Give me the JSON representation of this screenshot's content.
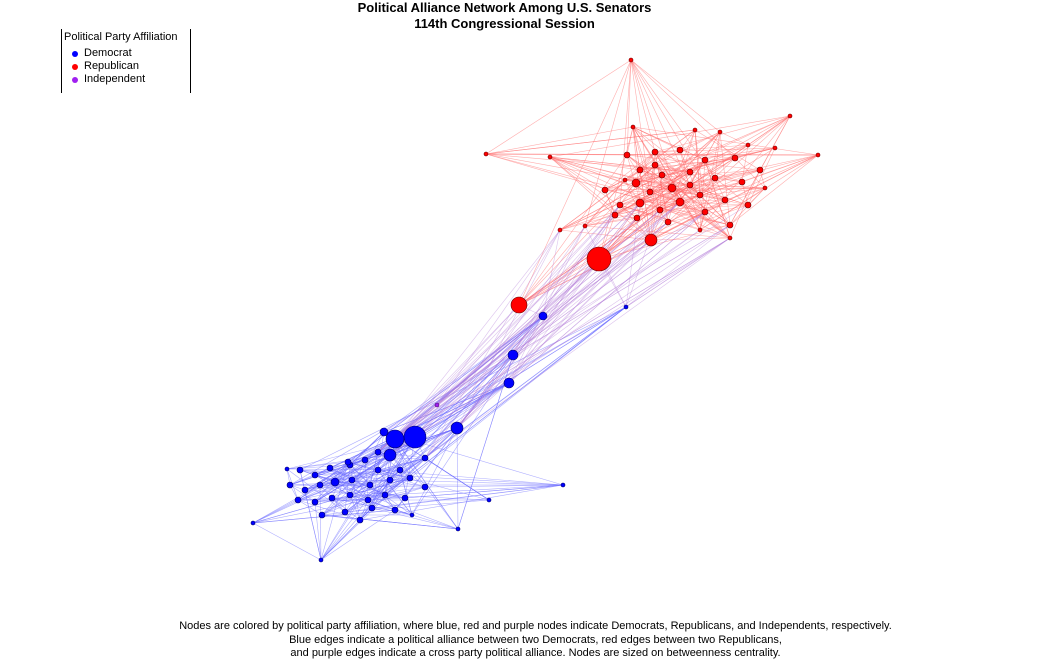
{
  "title": {
    "line1": "Political Alliance Network Among U.S. Senators",
    "line2": "114th Congressional Session"
  },
  "legend": {
    "title": "Political Party Affiliation",
    "items": [
      {
        "label": "Democrat",
        "color": "#0000ff"
      },
      {
        "label": "Republican",
        "color": "#ff0000"
      },
      {
        "label": "Independent",
        "color": "#a020f0"
      }
    ]
  },
  "colors": {
    "democrat": "#0000ff",
    "republican": "#ff0000",
    "independent": "#a020f0",
    "democrat_edge": "#6a6aff",
    "republican_edge": "#ff6a6a",
    "cross_edge": "#b27ad8"
  },
  "caption": {
    "line1": "Nodes are colored by political party affiliation, where blue, red and purple nodes indicate Democrats, Republicans, and Independents, respectively.",
    "line2": "Blue edges indicate a political alliance between two Democrats, red edges between two Republicans,",
    "line3": "and purple edges indicate a cross party political alliance. Nodes are sized on betweenness centrality."
  }
}
